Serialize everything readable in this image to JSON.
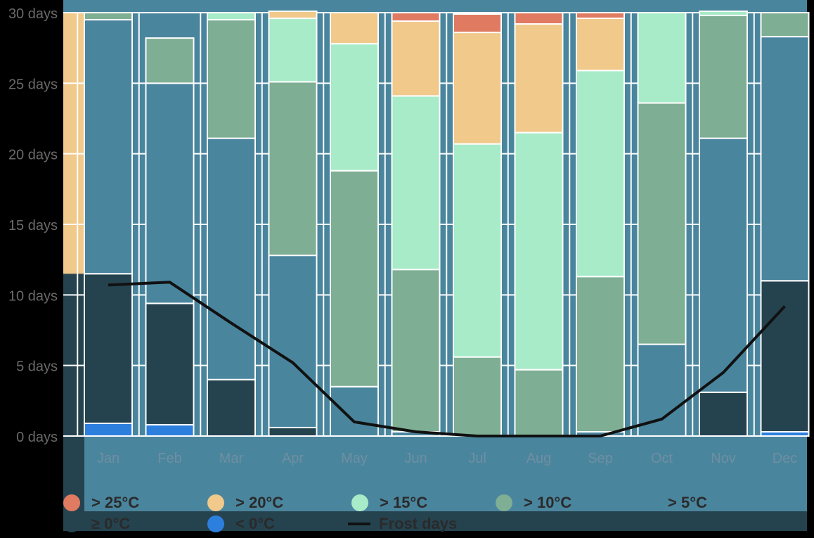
{
  "chart_data": {
    "type": "bar",
    "stacked": true,
    "categories": [
      "Jan",
      "Feb",
      "Mar",
      "Apr",
      "May",
      "Jun",
      "Jul",
      "Aug",
      "Sep",
      "Oct",
      "Nov",
      "Dec"
    ],
    "ylim": [
      0,
      30
    ],
    "yticks": [
      0,
      5,
      10,
      15,
      20,
      25,
      30
    ],
    "ytick_labels": [
      "0 days",
      "5 days",
      "10 days",
      "15 days",
      "20 days",
      "25 days",
      "30 days"
    ],
    "grid": true,
    "legend_position": "bottom",
    "series": [
      {
        "name": "< 0°C",
        "color": "#2d7fde",
        "values": [
          0.9,
          0.8,
          0,
          0,
          0,
          0,
          0,
          0,
          0,
          0,
          0,
          0.3
        ]
      },
      {
        "name": "≥ 0°C",
        "color": "#25434f",
        "values": [
          10.6,
          8.6,
          4,
          0.6,
          0,
          0,
          0,
          0,
          0,
          0,
          3.1,
          10.7
        ]
      },
      {
        "name": "> 5°C",
        "color": "#4a859e",
        "values": [
          18,
          15.6,
          17.1,
          12.2,
          3.5,
          0.3,
          0,
          0,
          0.3,
          6.5,
          18,
          17.3
        ]
      },
      {
        "name": "> 10°C",
        "color": "#7eae94",
        "values": [
          0.5,
          3.2,
          8.4,
          12.3,
          15.3,
          11.5,
          5.6,
          4.7,
          11,
          17.1,
          8.7,
          1.7
        ]
      },
      {
        "name": "> 15°C",
        "color": "#a8ebc8",
        "values": [
          0,
          0,
          0.5,
          4.5,
          9,
          12.3,
          15.1,
          16.8,
          14.6,
          6.4,
          0.3,
          0
        ]
      },
      {
        "name": "> 20°C",
        "color": "#f0c98b",
        "values": [
          0,
          0,
          0,
          0.5,
          2.2,
          5.3,
          7.9,
          7.7,
          3.7,
          0,
          0,
          0
        ]
      },
      {
        "name": "> 25°C",
        "color": "#e07b62",
        "values": [
          0,
          0,
          0,
          0,
          0,
          0.6,
          1.3,
          0.8,
          0.4,
          0,
          0,
          0
        ]
      }
    ],
    "line_series": {
      "name": "Frost days",
      "color": "#111111",
      "values": [
        10.7,
        10.9,
        8,
        5.2,
        1,
        0.3,
        0,
        0,
        0,
        1.2,
        4.5,
        9.2
      ]
    }
  },
  "legend": {
    "items": [
      {
        "label": "> 25°C",
        "color": "#e07b62",
        "kind": "dot"
      },
      {
        "label": "> 20°C",
        "color": "#f0c98b",
        "kind": "dot"
      },
      {
        "label": "> 15°C",
        "color": "#a8ebc8",
        "kind": "dot"
      },
      {
        "label": "> 10°C",
        "color": "#7eae94",
        "kind": "dot"
      },
      {
        "label": "> 5°C",
        "color": "#4a859e",
        "kind": "dot"
      },
      {
        "label": "≥ 0°C",
        "color": "#25434f",
        "kind": "dot"
      },
      {
        "label": "< 0°C",
        "color": "#2d7fde",
        "kind": "dot"
      },
      {
        "label": "Frost days",
        "color": "#111111",
        "kind": "line"
      }
    ]
  },
  "colors": {
    "plot_background": "#4a859e",
    "page_background": "#000000",
    "axis_label": "#6a6a6a",
    "category_label": "#6f8fa0",
    "gridline": "#ffffff",
    "legend_band_dark": "#25434f"
  }
}
